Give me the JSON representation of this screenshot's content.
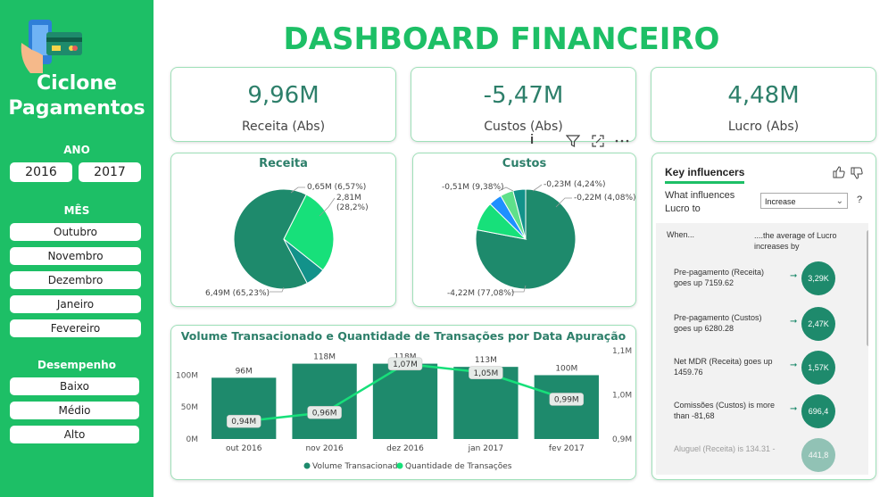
{
  "brand": {
    "line1": "Ciclone",
    "line2": "Pagamentos",
    "logo_icon": "card-payment-icon"
  },
  "title": "DASHBOARD FINANCEIRO",
  "filters": {
    "ano_label": "ANO",
    "anos": [
      "2016",
      "2017"
    ],
    "mes_label": "MÊS",
    "meses": [
      "Outubro",
      "Novembro",
      "Dezembro",
      "Janeiro",
      "Fevereiro"
    ],
    "desempenho_label": "Desempenho",
    "desempenhos": [
      "Baixo",
      "Médio",
      "Alto"
    ]
  },
  "kpis": [
    {
      "value": "9,96M",
      "label": "Receita (Abs)"
    },
    {
      "value": "-5,47M",
      "label": "Custos (Abs)"
    },
    {
      "value": "4,48M",
      "label": "Lucro (Abs)"
    }
  ],
  "toolbar": {
    "info": "i",
    "icons": [
      "filter-icon",
      "focus-mode-icon",
      "more-options-icon"
    ]
  },
  "colors": {
    "accent": "#1dbf66",
    "dark_teal": "#1e8a6c",
    "bright_green": "#17e07a",
    "teal": "#12928a",
    "blue": "#1e90ff"
  },
  "chart_data": [
    {
      "type": "pie",
      "title": "Receita",
      "slices": [
        {
          "value": 6.49,
          "percent": 65.23,
          "label": "6,49M (65,23%)",
          "color": "#1e8a6c"
        },
        {
          "value": 2.81,
          "percent": 28.2,
          "label_line1": "2,81M",
          "label_line2": "(28,2%)",
          "color": "#17e07a"
        },
        {
          "value": 0.65,
          "percent": 6.57,
          "label": "0,65M (6,57%)",
          "color": "#12928a"
        }
      ]
    },
    {
      "type": "pie",
      "title": "Custos",
      "slices": [
        {
          "value": 4.22,
          "percent": 77.08,
          "label": "-4,22M (77,08%)",
          "color": "#1e8a6c"
        },
        {
          "value": 0.51,
          "percent": 9.38,
          "label": "-0,51M (9,38%)",
          "color": "#17e07a"
        },
        {
          "value": 0.23,
          "percent": 4.24,
          "label": "-0,23M (4,24%)",
          "color": "#1e90ff"
        },
        {
          "value": 0.23,
          "percent": 5.3,
          "color": "#5fe08a"
        },
        {
          "value": 0.22,
          "percent": 4.08,
          "label": "-0,22M (4,08%)",
          "color": "#12928a"
        }
      ]
    },
    {
      "type": "bar",
      "title": "Volume Transacionado e Quantidade de Transações por Data Apuração",
      "categories": [
        "out 2016",
        "nov 2016",
        "dez 2016",
        "jan 2017",
        "fev 2017"
      ],
      "series": [
        {
          "name": "Volume Transacionado",
          "values": [
            96,
            118,
            118,
            113,
            100
          ],
          "labels": [
            "96M",
            "118M",
            "118M",
            "113M",
            "100M"
          ],
          "color": "#1e8a6c",
          "axis": "left"
        },
        {
          "name": "Quantidade de Transações",
          "values": [
            0.94,
            0.96,
            1.07,
            1.05,
            0.99
          ],
          "labels": [
            "0,94M",
            "0,96M",
            "1,07M",
            "1,05M",
            "0,99M"
          ],
          "color": "#17e07a",
          "axis": "right"
        }
      ],
      "yleft": {
        "ticks": [
          "0M",
          "50M",
          "100M"
        ],
        "range": [
          0,
          130
        ]
      },
      "yright": {
        "ticks": [
          "0,9M",
          "1,0M",
          "1,1M"
        ],
        "range": [
          0.9,
          1.1
        ]
      },
      "legend_position": "bottom"
    }
  ],
  "key_influencers": {
    "title": "Key influencers",
    "question_line1": "What influences",
    "question_line2": "Lucro to",
    "select_value": "Increase",
    "help": "?",
    "when": "When...",
    "avg_line1": "....the average of Lucro",
    "avg_line2": "increases by",
    "rows": [
      {
        "line1": "Pre-pagamento (Receita)",
        "line2": "goes up 7159.62",
        "value": "3,29K"
      },
      {
        "line1": "Pre-pagamento (Custos)",
        "line2": "goes up 6280.28",
        "value": "2,47K"
      },
      {
        "line1": "Net MDR (Receita) goes up",
        "line2": "1459.76",
        "value": "1,57K"
      },
      {
        "line1": "Comissões (Custos) is more",
        "line2": "than -81,68",
        "value": "696,4"
      },
      {
        "line1": "Aluguel (Receita) is 134.31 -",
        "line2": "",
        "value": "441,8"
      }
    ]
  }
}
